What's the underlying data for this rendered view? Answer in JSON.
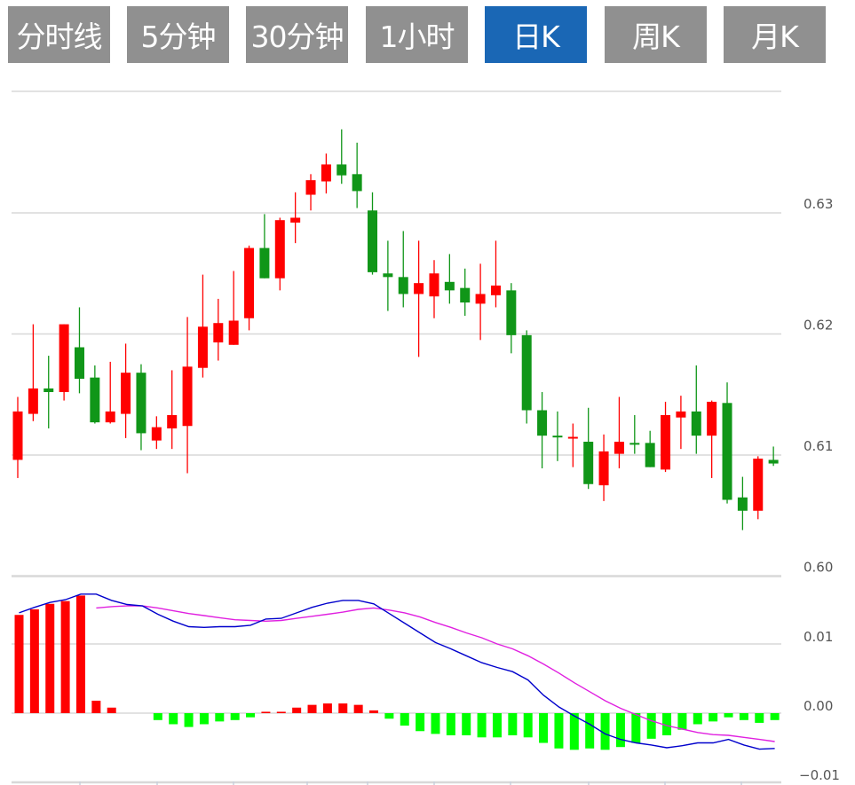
{
  "tabs": [
    {
      "label": "分时线",
      "active": false
    },
    {
      "label": "5分钟",
      "active": false
    },
    {
      "label": "30分钟",
      "active": false
    },
    {
      "label": "1小时",
      "active": false
    },
    {
      "label": "日K",
      "active": true
    },
    {
      "label": "周K",
      "active": false
    },
    {
      "label": "月K",
      "active": false
    }
  ],
  "colors": {
    "tab": "#909090",
    "tab_active": "#1a67b5",
    "up": "#ff0000",
    "down": "#109618",
    "macd_up": "#ff0000",
    "macd_down": "#00ff00",
    "dif": "#0000cc",
    "dea": "#e020e0",
    "grid": "#d8d8d8"
  },
  "chart_data": [
    {
      "type": "candlestick",
      "ylim": [
        0.6,
        0.64
      ],
      "yticks": [
        "0.63",
        "0.62",
        "0.61",
        "0.60"
      ],
      "ytick_values": [
        0.63,
        0.62,
        0.61,
        0.6
      ],
      "grid": true,
      "ohlc": [
        [
          0.6096,
          0.6148,
          0.6081,
          0.6136
        ],
        [
          0.6134,
          0.6208,
          0.6128,
          0.6155
        ],
        [
          0.6155,
          0.6182,
          0.6122,
          0.6152
        ],
        [
          0.6152,
          0.6208,
          0.6145,
          0.6208
        ],
        [
          0.6189,
          0.6222,
          0.6151,
          0.6163
        ],
        [
          0.6164,
          0.6174,
          0.6126,
          0.6127
        ],
        [
          0.6127,
          0.6177,
          0.6126,
          0.6136
        ],
        [
          0.6134,
          0.6192,
          0.6114,
          0.6168
        ],
        [
          0.6168,
          0.6175,
          0.6104,
          0.6118
        ],
        [
          0.6112,
          0.6132,
          0.6105,
          0.6123
        ],
        [
          0.6122,
          0.617,
          0.6105,
          0.6133
        ],
        [
          0.6124,
          0.6214,
          0.6085,
          0.6173
        ],
        [
          0.6172,
          0.6249,
          0.6164,
          0.6206
        ],
        [
          0.6193,
          0.6229,
          0.6178,
          0.6209
        ],
        [
          0.6191,
          0.6252,
          0.6191,
          0.6211
        ],
        [
          0.6213,
          0.6273,
          0.6203,
          0.6271
        ],
        [
          0.6271,
          0.6299,
          0.6246,
          0.6246
        ],
        [
          0.6246,
          0.6296,
          0.6236,
          0.6294
        ],
        [
          0.6292,
          0.6317,
          0.6275,
          0.6296
        ],
        [
          0.6315,
          0.6332,
          0.6302,
          0.6327
        ],
        [
          0.6326,
          0.6349,
          0.6316,
          0.634
        ],
        [
          0.634,
          0.6369,
          0.6324,
          0.6331
        ],
        [
          0.6332,
          0.6358,
          0.6304,
          0.6318
        ],
        [
          0.6302,
          0.6317,
          0.6249,
          0.6251
        ],
        [
          0.625,
          0.6277,
          0.6219,
          0.6247
        ],
        [
          0.6247,
          0.6285,
          0.6222,
          0.6233
        ],
        [
          0.6233,
          0.6277,
          0.6181,
          0.6242
        ],
        [
          0.6231,
          0.6261,
          0.6213,
          0.625
        ],
        [
          0.6243,
          0.6266,
          0.6225,
          0.6236
        ],
        [
          0.6238,
          0.6254,
          0.6215,
          0.6226
        ],
        [
          0.6225,
          0.6258,
          0.6195,
          0.6233
        ],
        [
          0.6232,
          0.6277,
          0.6222,
          0.624
        ],
        [
          0.6236,
          0.6242,
          0.6184,
          0.6199
        ],
        [
          0.6199,
          0.6203,
          0.6126,
          0.6137
        ],
        [
          0.6137,
          0.6152,
          0.6089,
          0.6116
        ],
        [
          0.6116,
          0.6136,
          0.6095,
          0.6115
        ],
        [
          0.6114,
          0.6126,
          0.609,
          0.6115
        ],
        [
          0.6111,
          0.6139,
          0.6072,
          0.6076
        ],
        [
          0.6075,
          0.6117,
          0.6062,
          0.6103
        ],
        [
          0.6101,
          0.6148,
          0.6089,
          0.6111
        ],
        [
          0.611,
          0.6133,
          0.6101,
          0.6109
        ],
        [
          0.611,
          0.612,
          0.609,
          0.609
        ],
        [
          0.6088,
          0.6144,
          0.6086,
          0.6133
        ],
        [
          0.6131,
          0.6149,
          0.6105,
          0.6136
        ],
        [
          0.6136,
          0.6174,
          0.6101,
          0.6116
        ],
        [
          0.6116,
          0.6145,
          0.6081,
          0.6144
        ],
        [
          0.6143,
          0.616,
          0.606,
          0.6063
        ],
        [
          0.6065,
          0.6082,
          0.6038,
          0.6054
        ],
        [
          0.6054,
          0.6099,
          0.6047,
          0.6097
        ],
        [
          0.6096,
          0.6107,
          0.6091,
          0.6093
        ]
      ]
    },
    {
      "type": "bar+line",
      "ylim": [
        -0.01,
        0.015
      ],
      "yticks": [
        "0.01",
        "0.00",
        "-0.01"
      ],
      "ytick_values": [
        0.01,
        0.0,
        -0.01
      ],
      "macd": [
        0.0142,
        0.015,
        0.0158,
        0.0162,
        0.017,
        0.0018,
        0.0008,
        0,
        0,
        -0.001,
        -0.0016,
        -0.002,
        -0.0016,
        -0.0012,
        -0.001,
        -0.0006,
        0.0002,
        0.0002,
        0.0008,
        0.0012,
        0.0014,
        0.0014,
        0.0012,
        0.0004,
        -0.0008,
        -0.0018,
        -0.0026,
        -0.003,
        -0.0032,
        -0.0032,
        -0.0035,
        -0.0035,
        -0.0032,
        -0.0035,
        -0.0043,
        -0.0051,
        -0.0053,
        -0.0051,
        -0.0053,
        -0.0049,
        -0.0043,
        -0.0037,
        -0.0032,
        -0.0024,
        -0.0016,
        -0.0012,
        -0.0006,
        -0.001,
        -0.0014,
        -0.001
      ],
      "dif": [
        0.0145,
        0.0153,
        0.016,
        0.0164,
        0.0172,
        0.0172,
        0.0163,
        0.0157,
        0.0155,
        0.0143,
        0.0133,
        0.0125,
        0.0124,
        0.0125,
        0.0125,
        0.0127,
        0.0136,
        0.0137,
        0.0145,
        0.0153,
        0.0159,
        0.0163,
        0.0163,
        0.0158,
        0.0144,
        0.013,
        0.0116,
        0.0102,
        0.0093,
        0.0083,
        0.0073,
        0.0066,
        0.006,
        0.0048,
        0.0026,
        0.0009,
        -0.0004,
        -0.0016,
        -0.003,
        -0.0038,
        -0.0043,
        -0.0046,
        -0.005,
        -0.0047,
        -0.0043,
        -0.0043,
        -0.0038,
        -0.0046,
        -0.0052,
        -0.0051
      ],
      "dea": [
        null,
        null,
        null,
        null,
        null,
        0.0152,
        0.0154,
        0.0155,
        0.0155,
        0.0152,
        0.0148,
        0.0144,
        0.0141,
        0.0138,
        0.0135,
        0.0134,
        0.0133,
        0.0134,
        0.0137,
        0.014,
        0.0143,
        0.0146,
        0.015,
        0.0152,
        0.0149,
        0.0145,
        0.0139,
        0.0131,
        0.0124,
        0.0116,
        0.0109,
        0.01,
        0.0093,
        0.0083,
        0.0071,
        0.0058,
        0.0044,
        0.0031,
        0.0018,
        0.0007,
        -0.0002,
        -0.0011,
        -0.0018,
        -0.0023,
        -0.0028,
        -0.0031,
        -0.0032,
        -0.0035,
        -0.0038,
        -0.0041
      ]
    }
  ]
}
